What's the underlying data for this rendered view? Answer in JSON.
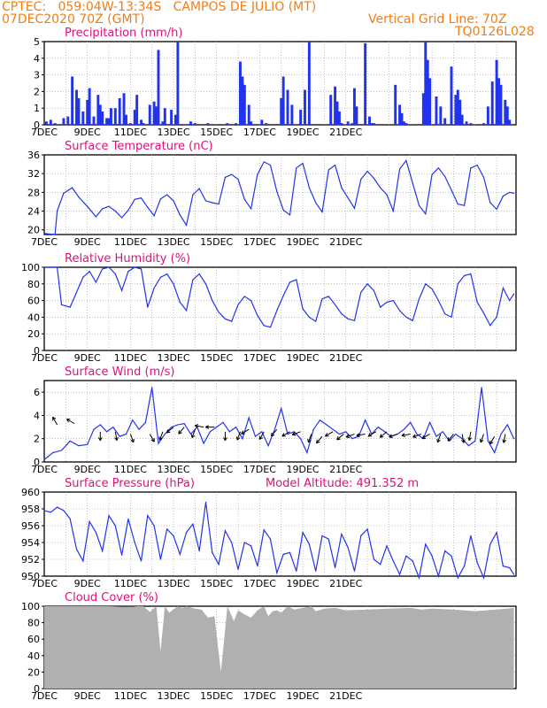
{
  "header": {
    "line1": "CPTEC:   059:04W-13:34S   CAMPOS DE JULIO (MT)",
    "line2_left": "07DEC2020 70Z (GMT)",
    "line2_right": "Vertical Grid Line: 70Z",
    "line3_right": "TQ0126L028",
    "model_altitude": "Model Altitude: 491.352 m"
  },
  "colors": {
    "header": "#f07e17",
    "panel_title": "#e0107a",
    "series": "#2233ee",
    "cloud": "#b0b0b0",
    "wind_arrow": "#000000"
  },
  "x_ticks": [
    "7DEC",
    "9DEC",
    "11DEC",
    "13DEC",
    "15DEC",
    "17DEC",
    "19DEC",
    "21DEC"
  ],
  "chart_data": [
    {
      "id": "precip",
      "type": "bar",
      "title": "Precipitation (mm/h)",
      "ylim": [
        0,
        5
      ],
      "yticks": [
        "0",
        "1",
        "2",
        "3",
        "4",
        "5"
      ],
      "grid": true,
      "x_unit": "day offset from 7DEC 00Z",
      "x": [
        0.1,
        0.3,
        0.5,
        0.9,
        1.1,
        1.3,
        1.5,
        1.6,
        1.8,
        2.0,
        2.1,
        2.3,
        2.5,
        2.6,
        2.7,
        2.9,
        3.0,
        3.1,
        3.3,
        3.5,
        3.7,
        3.8,
        4.0,
        4.2,
        4.3,
        4.5,
        4.6,
        4.9,
        5.1,
        5.2,
        5.3,
        5.5,
        5.6,
        5.9,
        6.1,
        6.2,
        6.8,
        7.0,
        7.6,
        8.5,
        8.9,
        9.1,
        9.2,
        9.3,
        9.5,
        9.6,
        10.1,
        10.3,
        11.0,
        11.1,
        11.3,
        11.5,
        11.9,
        12.1,
        12.3,
        13.3,
        13.5,
        13.6,
        13.7,
        13.8,
        14.1,
        14.3,
        14.4,
        14.5,
        14.9,
        15.1,
        15.2,
        15.3,
        16.3,
        16.5,
        16.6,
        16.7,
        16.8,
        17.6,
        17.7,
        17.8,
        17.9,
        18.2,
        18.4,
        18.6,
        18.9,
        19.1,
        19.2,
        19.3,
        19.4,
        19.6,
        19.8,
        20.4,
        20.6,
        20.8,
        21.0,
        21.1,
        21.2,
        21.4,
        21.5,
        21.6
      ],
      "values": [
        0.2,
        0.3,
        0.1,
        0.4,
        0.5,
        2.9,
        2.1,
        1.6,
        0.8,
        1.5,
        2.2,
        0.5,
        1.8,
        1.2,
        0.8,
        0.4,
        0.4,
        1.0,
        1.0,
        1.6,
        1.9,
        0.6,
        0.1,
        0.9,
        1.8,
        0.3,
        0.1,
        1.2,
        1.4,
        1.1,
        4.5,
        0.2,
        1.0,
        0.9,
        0.6,
        5.0,
        0.2,
        0.1,
        0.1,
        0.1,
        0.1,
        3.8,
        2.9,
        2.4,
        1.2,
        0.2,
        0.3,
        0.1,
        1.6,
        2.9,
        2.1,
        1.2,
        0.9,
        2.1,
        5.0,
        1.8,
        2.3,
        1.4,
        0.8,
        0.1,
        0.2,
        0.1,
        2.2,
        1.1,
        4.9,
        0.5,
        0.1,
        0.1,
        2.4,
        1.2,
        0.7,
        0.2,
        0.1,
        1.9,
        5.0,
        3.9,
        2.8,
        1.7,
        1.1,
        0.4,
        3.5,
        1.8,
        2.1,
        1.5,
        0.6,
        0.2,
        0.1,
        0.1,
        1.1,
        2.6,
        3.9,
        2.8,
        2.4,
        1.5,
        1.1,
        0.3
      ]
    },
    {
      "id": "temp",
      "type": "line",
      "title": "Surface Temperature (nC)",
      "ylim": [
        19,
        36
      ],
      "yticks": [
        "20",
        "24",
        "28",
        "32",
        "36"
      ],
      "grid": true,
      "x_unit": "day offset from 7DEC 00Z",
      "x": [
        0.0,
        0.5,
        0.6,
        0.9,
        1.3,
        1.6,
        2.0,
        2.4,
        2.7,
        3.0,
        3.3,
        3.6,
        3.9,
        4.2,
        4.5,
        4.8,
        5.1,
        5.4,
        5.7,
        6.0,
        6.3,
        6.6,
        6.9,
        7.2,
        7.5,
        7.8,
        8.1,
        8.4,
        8.7,
        9.0,
        9.3,
        9.6,
        9.9,
        10.2,
        10.5,
        10.8,
        11.1,
        11.4,
        11.7,
        12.0,
        12.3,
        12.6,
        12.9,
        13.2,
        13.5,
        13.8,
        14.1,
        14.4,
        14.7,
        15.0,
        15.3,
        15.6,
        15.9,
        16.2,
        16.5,
        16.8,
        17.1,
        17.4,
        17.7,
        18.0,
        18.3,
        18.6,
        18.9,
        19.2,
        19.5,
        19.8,
        20.1,
        20.4,
        20.7,
        21.0,
        21.3,
        21.6,
        21.8
      ],
      "values": [
        19.2,
        19.0,
        24.0,
        27.8,
        29.0,
        27.0,
        25.0,
        22.8,
        24.5,
        25.0,
        24.0,
        22.6,
        24.2,
        26.5,
        26.8,
        24.8,
        23.0,
        26.6,
        27.5,
        26.2,
        23.2,
        21.0,
        27.5,
        28.8,
        26.2,
        25.8,
        25.5,
        31.2,
        31.8,
        30.8,
        26.5,
        24.5,
        31.8,
        34.5,
        33.8,
        28.2,
        24.2,
        23.2,
        33.2,
        34.2,
        29.0,
        25.8,
        23.8,
        32.8,
        33.8,
        29.0,
        26.8,
        24.6,
        30.8,
        32.5,
        31.0,
        29.0,
        27.5,
        24.0,
        33.0,
        34.8,
        30.0,
        25.2,
        23.4,
        31.8,
        33.2,
        31.4,
        28.5,
        25.5,
        25.2,
        33.2,
        33.8,
        31.2,
        25.8,
        24.4,
        27.2,
        28.0,
        27.8
      ]
    },
    {
      "id": "rh",
      "type": "line",
      "title": "Relative Humidity (%)",
      "ylim": [
        0,
        100
      ],
      "yticks": [
        "0",
        "20",
        "40",
        "60",
        "80",
        "100"
      ],
      "grid": true,
      "x_unit": "day offset from 7DEC 00Z",
      "x": [
        0.0,
        0.6,
        0.8,
        1.2,
        1.5,
        1.8,
        2.1,
        2.4,
        2.7,
        3.0,
        3.3,
        3.6,
        3.9,
        4.2,
        4.5,
        4.8,
        5.1,
        5.4,
        5.7,
        6.0,
        6.3,
        6.6,
        6.9,
        7.2,
        7.5,
        7.8,
        8.1,
        8.4,
        8.7,
        9.0,
        9.3,
        9.6,
        9.9,
        10.2,
        10.5,
        10.8,
        11.1,
        11.4,
        11.7,
        12.0,
        12.3,
        12.6,
        12.9,
        13.2,
        13.5,
        13.8,
        14.1,
        14.4,
        14.7,
        15.0,
        15.3,
        15.6,
        15.9,
        16.2,
        16.5,
        16.8,
        17.1,
        17.4,
        17.7,
        18.0,
        18.3,
        18.6,
        18.9,
        19.2,
        19.5,
        19.8,
        20.1,
        20.4,
        20.7,
        21.0,
        21.3,
        21.6,
        21.8
      ],
      "values": [
        100,
        100,
        55,
        52,
        70,
        88,
        95,
        82,
        98,
        100,
        92,
        72,
        95,
        100,
        98,
        52,
        75,
        88,
        92,
        80,
        58,
        48,
        85,
        92,
        80,
        60,
        46,
        38,
        35,
        55,
        65,
        60,
        42,
        30,
        28,
        48,
        66,
        82,
        85,
        50,
        40,
        35,
        62,
        65,
        55,
        44,
        38,
        36,
        70,
        80,
        72,
        52,
        58,
        60,
        48,
        40,
        36,
        62,
        80,
        74,
        60,
        44,
        40,
        80,
        90,
        92,
        58,
        45,
        30,
        40,
        75,
        60,
        68
      ]
    },
    {
      "id": "wind",
      "type": "line",
      "title": "Surface Wind (m/s)",
      "ylim": [
        0,
        7
      ],
      "yticks": [
        "0",
        "2",
        "4",
        "6"
      ],
      "grid": true,
      "x_unit": "day offset from 7DEC 00Z",
      "x": [
        0.0,
        0.4,
        0.8,
        1.2,
        1.6,
        2.0,
        2.3,
        2.6,
        2.9,
        3.2,
        3.5,
        3.8,
        4.1,
        4.4,
        4.7,
        5.0,
        5.3,
        5.6,
        5.9,
        6.2,
        6.5,
        6.8,
        7.1,
        7.4,
        7.7,
        8.0,
        8.3,
        8.6,
        8.9,
        9.2,
        9.5,
        9.8,
        10.1,
        10.4,
        10.7,
        11.0,
        11.3,
        11.6,
        11.9,
        12.2,
        12.5,
        12.8,
        13.1,
        13.4,
        13.7,
        14.0,
        14.3,
        14.6,
        14.9,
        15.2,
        15.5,
        15.8,
        16.1,
        16.4,
        16.7,
        17.0,
        17.3,
        17.6,
        17.9,
        18.2,
        18.5,
        18.8,
        19.1,
        19.4,
        19.7,
        20.0,
        20.3,
        20.6,
        20.9,
        21.2,
        21.5,
        21.8
      ],
      "values": [
        0.2,
        0.8,
        1.0,
        1.8,
        1.4,
        1.5,
        2.8,
        3.2,
        2.6,
        3.0,
        2.2,
        2.4,
        3.6,
        2.8,
        3.4,
        6.4,
        1.6,
        2.4,
        3.0,
        3.2,
        3.3,
        2.4,
        3.0,
        1.6,
        2.6,
        3.0,
        3.4,
        2.6,
        3.0,
        2.0,
        3.8,
        2.2,
        2.6,
        1.4,
        2.8,
        4.6,
        2.4,
        2.6,
        2.0,
        0.8,
        2.8,
        3.6,
        3.2,
        2.8,
        2.4,
        2.6,
        2.0,
        2.2,
        3.6,
        2.4,
        3.0,
        2.6,
        2.2,
        2.4,
        2.8,
        3.4,
        2.4,
        2.0,
        3.4,
        2.2,
        2.6,
        1.8,
        2.4,
        2.0,
        1.4,
        1.8,
        6.4,
        1.8,
        0.8,
        2.4,
        3.2,
        2.0
      ]
    },
    {
      "id": "pressure",
      "type": "line",
      "title": "Surface Pressure (hPa)",
      "ylim": [
        950,
        960
      ],
      "yticks": [
        "950",
        "952",
        "954",
        "956",
        "958",
        "960"
      ],
      "grid": true,
      "x_unit": "day offset from 7DEC 00Z",
      "x": [
        0.0,
        0.3,
        0.6,
        0.9,
        1.2,
        1.5,
        1.8,
        2.1,
        2.4,
        2.7,
        3.0,
        3.3,
        3.6,
        3.9,
        4.2,
        4.5,
        4.8,
        5.1,
        5.4,
        5.7,
        6.0,
        6.3,
        6.6,
        6.9,
        7.2,
        7.5,
        7.8,
        8.1,
        8.4,
        8.7,
        9.0,
        9.3,
        9.6,
        9.9,
        10.2,
        10.5,
        10.8,
        11.1,
        11.4,
        11.7,
        12.0,
        12.3,
        12.6,
        12.9,
        13.2,
        13.5,
        13.8,
        14.1,
        14.4,
        14.7,
        15.0,
        15.3,
        15.6,
        15.9,
        16.2,
        16.5,
        16.8,
        17.1,
        17.4,
        17.7,
        18.0,
        18.3,
        18.6,
        18.9,
        19.2,
        19.5,
        19.8,
        20.1,
        20.4,
        20.7,
        21.0,
        21.3,
        21.6,
        21.8
      ],
      "values": [
        957.8,
        957.6,
        958.2,
        957.8,
        956.8,
        953.2,
        951.8,
        956.5,
        955.2,
        953.0,
        957.2,
        956.0,
        952.5,
        956.8,
        954.0,
        951.8,
        957.2,
        956.0,
        952.0,
        955.6,
        954.8,
        952.6,
        955.2,
        956.2,
        953.0,
        958.8,
        952.8,
        951.4,
        955.4,
        954.0,
        950.8,
        954.0,
        953.6,
        951.2,
        955.5,
        954.4,
        950.4,
        952.6,
        952.8,
        950.6,
        955.2,
        953.8,
        950.6,
        954.8,
        954.4,
        951.0,
        955.0,
        953.4,
        950.6,
        954.8,
        955.6,
        952.0,
        951.4,
        953.6,
        951.8,
        950.2,
        952.4,
        951.8,
        949.8,
        953.8,
        952.4,
        950.0,
        953.0,
        952.4,
        949.8,
        951.2,
        954.8,
        951.6,
        949.8,
        953.8,
        955.2,
        951.2,
        951.0,
        950.2
      ]
    },
    {
      "id": "cloud",
      "type": "area",
      "title": "Cloud Cover (%)",
      "ylim": [
        0,
        100
      ],
      "yticks": [
        "0",
        "20",
        "40",
        "60",
        "80",
        "100"
      ],
      "grid": true,
      "x_unit": "day offset from 7DEC 00Z",
      "x": [
        0.0,
        2.0,
        3.0,
        4.0,
        4.3,
        4.6,
        4.9,
        5.2,
        5.4,
        5.6,
        5.8,
        6.2,
        6.4,
        6.6,
        7.0,
        7.3,
        7.6,
        7.9,
        8.2,
        8.5,
        8.8,
        9.0,
        9.3,
        9.6,
        9.9,
        10.2,
        10.4,
        10.6,
        10.8,
        11.0,
        11.3,
        11.6,
        12.0,
        12.4,
        12.6,
        13.0,
        13.5,
        14.0,
        15.0,
        16.0,
        17.0,
        17.5,
        18.0,
        19.0,
        20.0,
        20.5,
        21.0,
        21.5,
        21.8
      ],
      "values": [
        100,
        100,
        100,
        99,
        100,
        100,
        93,
        100,
        45,
        100,
        92,
        100,
        98,
        100,
        97,
        96,
        86,
        88,
        20,
        100,
        82,
        95,
        90,
        86,
        95,
        100,
        88,
        94,
        95,
        92,
        100,
        96,
        98,
        100,
        94,
        97,
        98,
        95,
        96,
        97,
        98,
        96,
        97,
        96,
        94,
        95,
        96,
        97,
        98
      ]
    }
  ]
}
